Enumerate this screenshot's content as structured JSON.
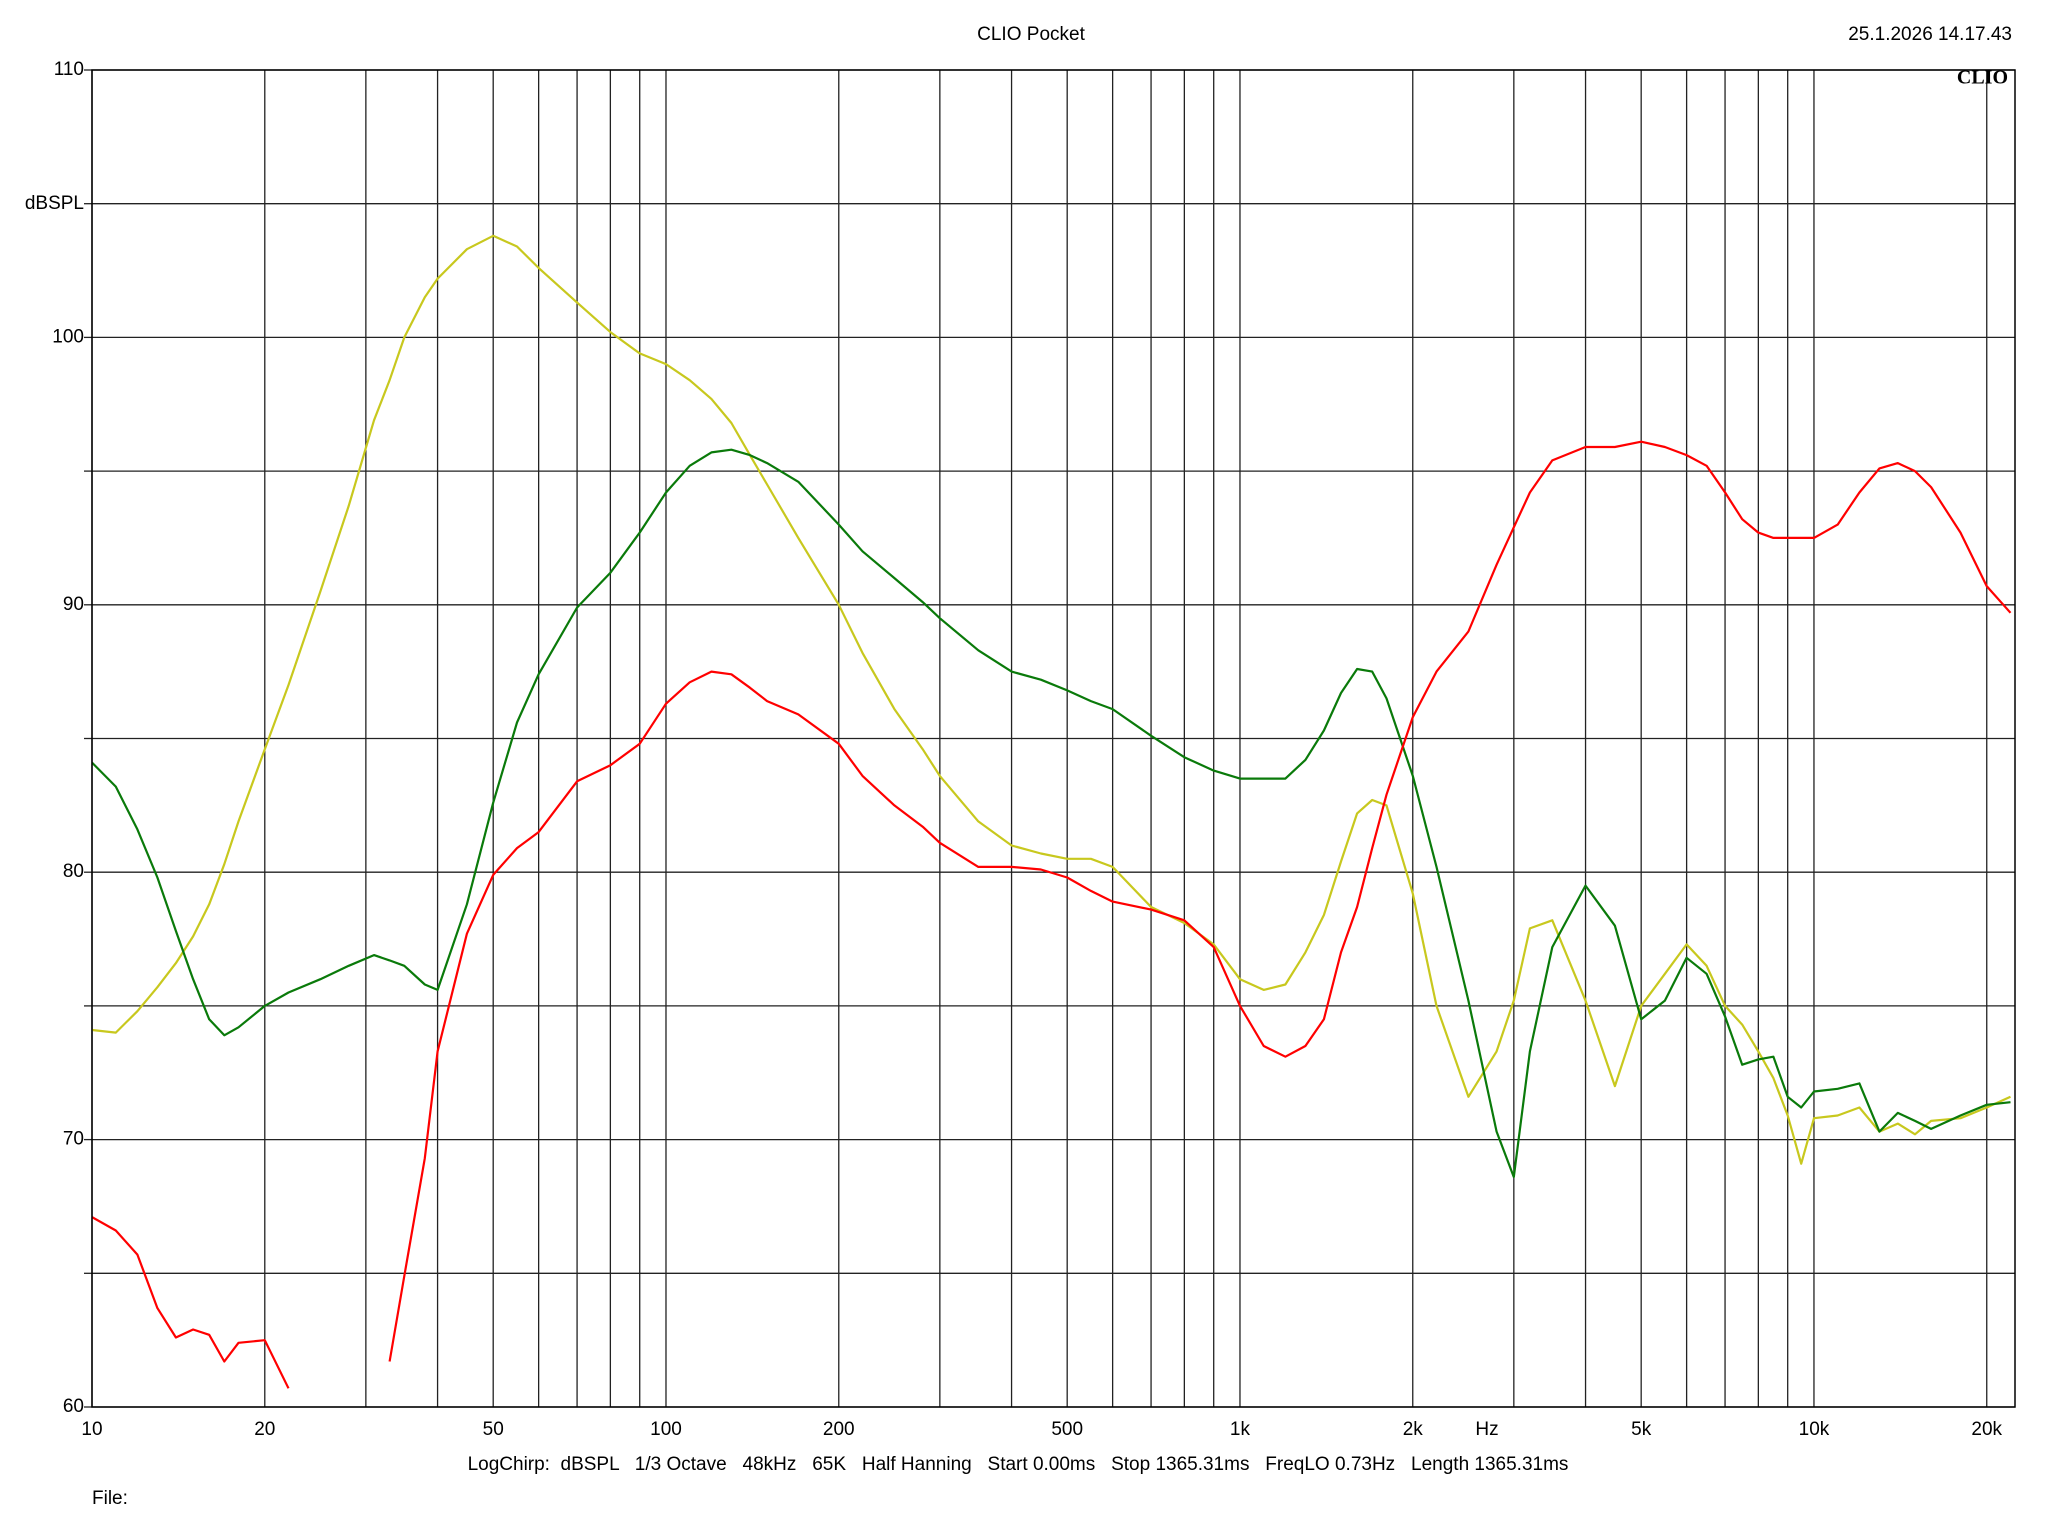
{
  "chart_data": {
    "type": "line",
    "title": "CLIO Pocket",
    "timestamp": "25.1.2026 14.17.43",
    "logo": "CLIO",
    "y_label": "dBSPL",
    "x_label": "Hz",
    "footer": "LogChirp:  dBSPL   1/3 Octave   48kHz   65K   Half Hanning   Start 0.00ms   Stop 1365.31ms   FreqLO 0.73Hz   Length 1365.31ms",
    "file_label": "File:",
    "log_x": true,
    "grid": true,
    "xlim": [
      10,
      22400
    ],
    "ylim": [
      60,
      110
    ],
    "xticks": [
      10,
      20,
      50,
      100,
      200,
      500,
      {
        "value": 1000,
        "label": "1k"
      },
      {
        "value": 2000,
        "label": "2k"
      },
      {
        "value": 5000,
        "label": "5k"
      },
      {
        "value": 10000,
        "label": "10k"
      },
      {
        "value": 20000,
        "label": "20k"
      }
    ],
    "x_minor_ticks": [
      30,
      40,
      60,
      70,
      80,
      90,
      300,
      400,
      600,
      700,
      800,
      900,
      3000,
      4000,
      6000,
      7000,
      8000,
      9000
    ],
    "yticks": [
      60,
      70,
      80,
      90,
      100,
      110
    ],
    "y_minor_ticks": [
      65,
      75,
      85,
      95,
      105
    ],
    "x": [
      10,
      11,
      12,
      13,
      14,
      15,
      16,
      17,
      18,
      20,
      22,
      25,
      28,
      31,
      33,
      35,
      38,
      40,
      45,
      50,
      55,
      60,
      70,
      80,
      90,
      100,
      110,
      120,
      130,
      140,
      150,
      170,
      200,
      220,
      250,
      280,
      300,
      350,
      400,
      450,
      500,
      550,
      600,
      700,
      800,
      900,
      1000,
      1100,
      1200,
      1300,
      1400,
      1500,
      1600,
      1700,
      1800,
      2000,
      2200,
      2500,
      2800,
      3000,
      3200,
      3500,
      4000,
      4500,
      5000,
      5500,
      6000,
      6500,
      7000,
      7500,
      8000,
      8500,
      9000,
      9500,
      10000,
      11000,
      12000,
      13000,
      14000,
      15000,
      16000,
      18000,
      20000,
      22000
    ],
    "series": [
      {
        "color": "#c8c81e",
        "values": [
          74.1,
          74.0,
          74.8,
          75.7,
          76.6,
          77.6,
          78.8,
          80.3,
          81.9,
          84.6,
          87.0,
          90.5,
          93.7,
          96.9,
          98.4,
          100.0,
          101.5,
          102.2,
          103.3,
          103.8,
          103.4,
          102.6,
          101.3,
          100.2,
          99.4,
          99.0,
          98.4,
          97.7,
          96.8,
          95.6,
          94.5,
          92.5,
          90.0,
          88.2,
          86.1,
          84.6,
          83.6,
          81.9,
          81.0,
          80.7,
          80.5,
          80.5,
          80.2,
          78.7,
          78.1,
          77.3,
          76.0,
          75.6,
          75.8,
          77.0,
          78.4,
          80.4,
          82.2,
          82.7,
          82.5,
          79.2,
          75.0,
          71.6,
          73.3,
          75.2,
          77.9,
          78.2,
          75.2,
          72.0,
          75.0,
          76.2,
          77.3,
          76.5,
          75.0,
          74.3,
          73.3,
          72.3,
          70.9,
          69.1,
          70.8,
          70.9,
          71.2,
          70.3,
          70.6,
          70.2,
          70.7,
          70.8,
          71.2,
          71.6
        ]
      },
      {
        "color": "#0a7a0a",
        "values": [
          84.1,
          83.2,
          81.6,
          79.8,
          77.8,
          76.0,
          74.5,
          73.9,
          74.2,
          75.0,
          75.5,
          76.0,
          76.5,
          76.9,
          76.7,
          76.5,
          75.8,
          75.6,
          78.8,
          82.6,
          85.6,
          87.4,
          89.9,
          91.2,
          92.7,
          94.2,
          95.2,
          95.7,
          95.8,
          95.6,
          95.3,
          94.6,
          93.0,
          92.0,
          91.0,
          90.1,
          89.5,
          88.3,
          87.5,
          87.2,
          86.8,
          86.4,
          86.1,
          85.1,
          84.3,
          83.8,
          83.5,
          83.5,
          83.5,
          84.2,
          85.3,
          86.7,
          87.6,
          87.5,
          86.5,
          83.6,
          80.2,
          75.2,
          70.3,
          68.6,
          73.3,
          77.2,
          79.5,
          78.0,
          74.5,
          75.2,
          76.8,
          76.2,
          74.6,
          72.8,
          73.0,
          73.1,
          71.6,
          71.2,
          71.8,
          71.9,
          72.1,
          70.3,
          71.0,
          70.7,
          70.4,
          70.9,
          71.3,
          71.4
        ]
      },
      {
        "color": "#ff0000",
        "values": [
          67.1,
          66.6,
          65.7,
          63.7,
          62.6,
          62.9,
          62.7,
          61.7,
          62.4,
          62.5,
          60.7,
          null,
          null,
          null,
          61.7,
          64.9,
          69.3,
          73.3,
          77.7,
          79.9,
          80.9,
          81.5,
          83.4,
          84.0,
          84.8,
          86.3,
          87.1,
          87.5,
          87.4,
          86.9,
          86.4,
          85.9,
          84.8,
          83.6,
          82.5,
          81.7,
          81.1,
          80.2,
          80.2,
          80.1,
          79.8,
          79.3,
          78.9,
          78.6,
          78.2,
          77.2,
          75.0,
          73.5,
          73.1,
          73.5,
          74.5,
          77.0,
          78.7,
          80.9,
          82.9,
          85.8,
          87.5,
          89.0,
          91.5,
          92.9,
          94.2,
          95.4,
          95.9,
          95.9,
          96.1,
          95.9,
          95.6,
          95.2,
          94.2,
          93.2,
          92.7,
          92.5,
          92.5,
          92.5,
          92.5,
          93.0,
          94.2,
          95.1,
          95.3,
          95.0,
          94.4,
          92.7,
          90.7,
          89.7
        ]
      }
    ]
  }
}
